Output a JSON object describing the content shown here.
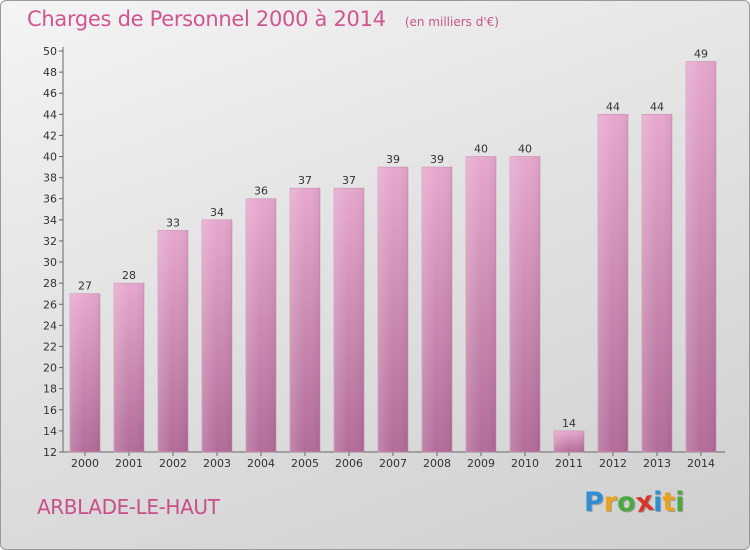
{
  "header": {
    "title": "Charges de Personnel 2000 à 2014",
    "subtitle": "(en milliers d'€)"
  },
  "commune": "ARBLADE-LE-HAUT",
  "logo": {
    "text": "Proxiti",
    "letters": [
      {
        "ch": "P",
        "color": "#2f8fd2"
      },
      {
        "ch": "r",
        "color": "#e8a21e"
      },
      {
        "ch": "o",
        "color": "#4aa83c"
      },
      {
        "ch": "x",
        "color": "#d9352a"
      },
      {
        "ch": "i",
        "color": "#2f8fd2"
      },
      {
        "ch": "t",
        "color": "#e8a21e"
      },
      {
        "ch": "i",
        "color": "#4aa83c"
      }
    ]
  },
  "colors": {
    "bar_top": "#e6a8ce",
    "bar_bottom": "#b26c98",
    "axis_text": "#333333",
    "title": "#d05591"
  },
  "chart_data": {
    "type": "bar",
    "categories": [
      "2000",
      "2001",
      "2002",
      "2003",
      "2004",
      "2005",
      "2006",
      "2007",
      "2008",
      "2009",
      "2010",
      "2011",
      "2012",
      "2013",
      "2014"
    ],
    "values": [
      27,
      28,
      33,
      34,
      36,
      37,
      37,
      39,
      39,
      40,
      40,
      14,
      44,
      44,
      49
    ],
    "data_labels": [
      "27",
      "28",
      "33",
      "34",
      "36",
      "37",
      "37",
      "39",
      "39",
      "40",
      "40",
      "14",
      "44",
      "44",
      "49"
    ],
    "ylim": [
      12,
      50
    ],
    "yticks": [
      "12",
      "14",
      "16",
      "18",
      "20",
      "22",
      "24",
      "26",
      "28",
      "30",
      "32",
      "34",
      "36",
      "38",
      "40",
      "42",
      "44",
      "46",
      "48",
      "50"
    ],
    "xlabel": "",
    "ylabel": "",
    "grid": false,
    "legend": "none"
  }
}
